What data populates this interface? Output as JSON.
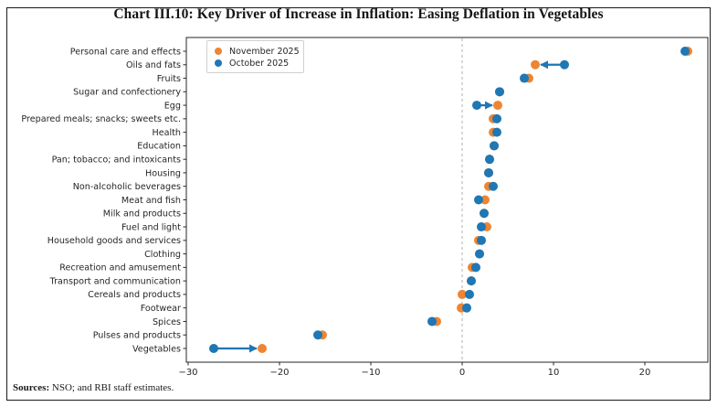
{
  "page": {
    "title": "Chart III.10: Key Driver of Increase in Inflation: Easing Deflation in Vegetables",
    "footer": {
      "sources_label": "Sources:",
      "sources_text": " NSO; and RBI staff estimates."
    }
  },
  "legend": [
    {
      "label": "November 2025",
      "color": "#ee8533"
    },
    {
      "label": "October 2025",
      "color": "#1f77b4"
    }
  ],
  "chart_data": {
    "type": "scatter",
    "subtype": "horizontal-dot-plot",
    "title": "Chart III.10: Key Driver of Increase in Inflation: Easing Deflation in Vegetables",
    "xlabel": "",
    "ylabel": "",
    "grid": false,
    "legend_position": "upper-left",
    "xlim": [
      -30.2,
      26.9
    ],
    "xticks": [
      -30,
      -20,
      -10,
      0,
      10,
      20
    ],
    "zero_line": 0,
    "categories": [
      "Personal care and effects",
      "Oils and fats",
      "Fruits",
      "Sugar and confectionery",
      "Egg",
      "Prepared meals; snacks; sweets etc.",
      "Health",
      "Education",
      "Pan; tobacco; and intoxicants",
      "Housing",
      "Non-alcoholic beverages",
      "Meat and fish",
      "Milk and products",
      "Fuel and light",
      "Household goods and services",
      "Clothing",
      "Recreation and amusement",
      "Transport and communication",
      "Cereals and products",
      "Footwear",
      "Spices",
      "Pulses and products",
      "Vegetables"
    ],
    "series": [
      {
        "name": "November 2025",
        "color": "#ee8533",
        "values": [
          24.7,
          8.0,
          7.3,
          4.1,
          3.9,
          3.4,
          3.4,
          3.5,
          3.0,
          2.9,
          2.9,
          2.5,
          2.4,
          2.7,
          1.8,
          1.9,
          1.1,
          1.0,
          0.0,
          -0.1,
          -2.8,
          -15.3,
          -21.9
        ]
      },
      {
        "name": "October 2025",
        "color": "#1f77b4",
        "values": [
          24.4,
          11.2,
          6.8,
          4.1,
          1.6,
          3.8,
          3.8,
          3.5,
          3.0,
          2.9,
          3.4,
          1.8,
          2.4,
          2.1,
          2.1,
          1.9,
          1.5,
          1.0,
          0.8,
          0.5,
          -3.3,
          -15.8,
          -27.2
        ]
      }
    ],
    "arrows": [
      {
        "category": "Oils and fats",
        "from": 11.2,
        "to": 8.0,
        "color": "#1f77b4"
      },
      {
        "category": "Egg",
        "from": 1.6,
        "to": 3.9,
        "color": "#1f77b4"
      },
      {
        "category": "Vegetables",
        "from": -27.2,
        "to": -21.9,
        "color": "#1f77b4"
      }
    ]
  }
}
